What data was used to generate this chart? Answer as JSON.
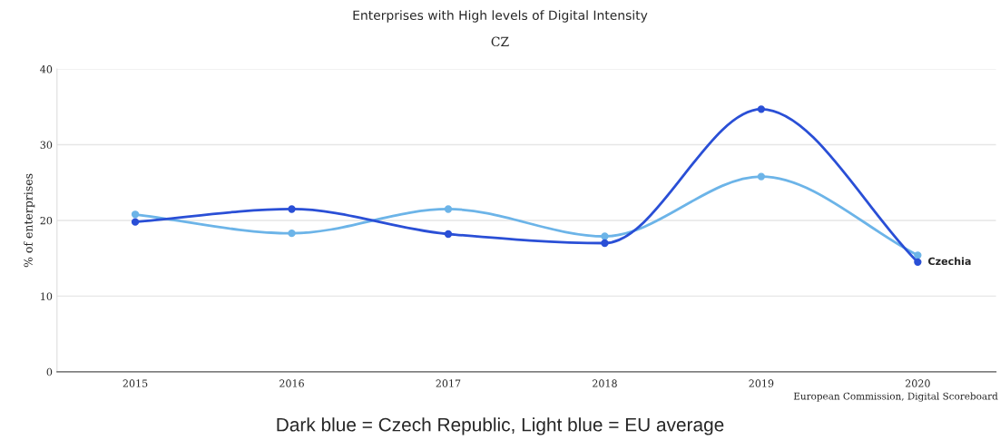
{
  "chart_data": {
    "type": "line",
    "title": "Enterprises with High levels of Digital Intensity",
    "subtitle": "CZ",
    "ylabel": "% of enterprises",
    "categories": [
      "2015",
      "2016",
      "2017",
      "2018",
      "2019",
      "2020"
    ],
    "series": [
      {
        "color": "#6cb4e8",
        "values": [
          20.8,
          18.3,
          21.5,
          17.9,
          25.8,
          15.4
        ]
      },
      {
        "name": "Czechia",
        "color": "#2a4fd6",
        "values": [
          19.8,
          21.5,
          18.2,
          17.0,
          34.7,
          14.5
        ]
      }
    ],
    "ylim": [
      0,
      40
    ],
    "yticks": [
      0,
      10,
      20,
      30,
      40
    ],
    "grid": "y",
    "marker": "circle",
    "line_style": "solid",
    "annotations": [
      "European Commission, Digital Scoreboard",
      "Dark blue = Czech Republic, Light blue = EU average"
    ]
  }
}
